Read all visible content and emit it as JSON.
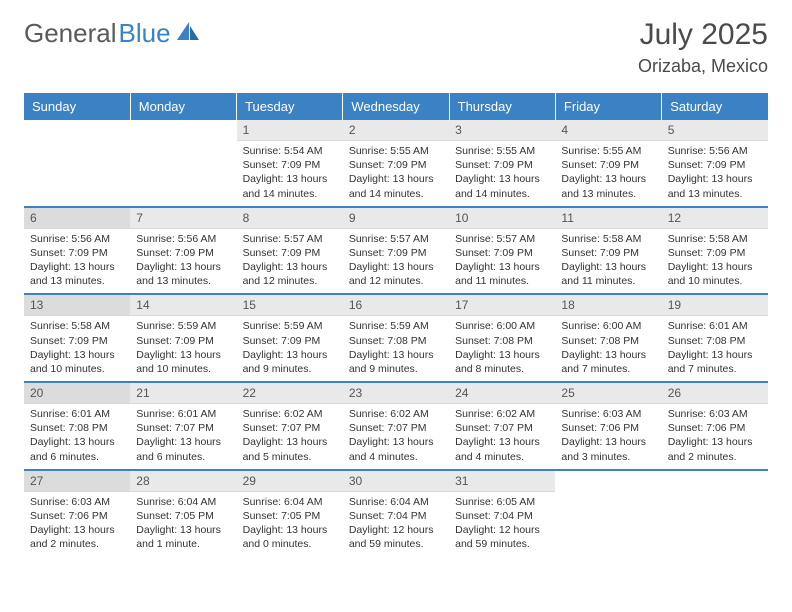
{
  "brand": {
    "part1": "General",
    "part2": "Blue"
  },
  "title": "July 2025",
  "location": "Orizaba, Mexico",
  "colors": {
    "accent": "#3b82c4",
    "header_bg": "#3b82c4",
    "header_text": "#ffffff",
    "daynum_bg": "#e9e9e9",
    "daynum_bg_sunday": "#dcdcdc",
    "text": "#333333",
    "page_bg": "#ffffff"
  },
  "weekdays": [
    "Sunday",
    "Monday",
    "Tuesday",
    "Wednesday",
    "Thursday",
    "Friday",
    "Saturday"
  ],
  "weeks": [
    [
      null,
      null,
      {
        "n": "1",
        "sunrise": "5:54 AM",
        "sunset": "7:09 PM",
        "daylight": "13 hours and 14 minutes."
      },
      {
        "n": "2",
        "sunrise": "5:55 AM",
        "sunset": "7:09 PM",
        "daylight": "13 hours and 14 minutes."
      },
      {
        "n": "3",
        "sunrise": "5:55 AM",
        "sunset": "7:09 PM",
        "daylight": "13 hours and 14 minutes."
      },
      {
        "n": "4",
        "sunrise": "5:55 AM",
        "sunset": "7:09 PM",
        "daylight": "13 hours and 13 minutes."
      },
      {
        "n": "5",
        "sunrise": "5:56 AM",
        "sunset": "7:09 PM",
        "daylight": "13 hours and 13 minutes."
      }
    ],
    [
      {
        "n": "6",
        "sunrise": "5:56 AM",
        "sunset": "7:09 PM",
        "daylight": "13 hours and 13 minutes."
      },
      {
        "n": "7",
        "sunrise": "5:56 AM",
        "sunset": "7:09 PM",
        "daylight": "13 hours and 13 minutes."
      },
      {
        "n": "8",
        "sunrise": "5:57 AM",
        "sunset": "7:09 PM",
        "daylight": "13 hours and 12 minutes."
      },
      {
        "n": "9",
        "sunrise": "5:57 AM",
        "sunset": "7:09 PM",
        "daylight": "13 hours and 12 minutes."
      },
      {
        "n": "10",
        "sunrise": "5:57 AM",
        "sunset": "7:09 PM",
        "daylight": "13 hours and 11 minutes."
      },
      {
        "n": "11",
        "sunrise": "5:58 AM",
        "sunset": "7:09 PM",
        "daylight": "13 hours and 11 minutes."
      },
      {
        "n": "12",
        "sunrise": "5:58 AM",
        "sunset": "7:09 PM",
        "daylight": "13 hours and 10 minutes."
      }
    ],
    [
      {
        "n": "13",
        "sunrise": "5:58 AM",
        "sunset": "7:09 PM",
        "daylight": "13 hours and 10 minutes."
      },
      {
        "n": "14",
        "sunrise": "5:59 AM",
        "sunset": "7:09 PM",
        "daylight": "13 hours and 10 minutes."
      },
      {
        "n": "15",
        "sunrise": "5:59 AM",
        "sunset": "7:09 PM",
        "daylight": "13 hours and 9 minutes."
      },
      {
        "n": "16",
        "sunrise": "5:59 AM",
        "sunset": "7:08 PM",
        "daylight": "13 hours and 9 minutes."
      },
      {
        "n": "17",
        "sunrise": "6:00 AM",
        "sunset": "7:08 PM",
        "daylight": "13 hours and 8 minutes."
      },
      {
        "n": "18",
        "sunrise": "6:00 AM",
        "sunset": "7:08 PM",
        "daylight": "13 hours and 7 minutes."
      },
      {
        "n": "19",
        "sunrise": "6:01 AM",
        "sunset": "7:08 PM",
        "daylight": "13 hours and 7 minutes."
      }
    ],
    [
      {
        "n": "20",
        "sunrise": "6:01 AM",
        "sunset": "7:08 PM",
        "daylight": "13 hours and 6 minutes."
      },
      {
        "n": "21",
        "sunrise": "6:01 AM",
        "sunset": "7:07 PM",
        "daylight": "13 hours and 6 minutes."
      },
      {
        "n": "22",
        "sunrise": "6:02 AM",
        "sunset": "7:07 PM",
        "daylight": "13 hours and 5 minutes."
      },
      {
        "n": "23",
        "sunrise": "6:02 AM",
        "sunset": "7:07 PM",
        "daylight": "13 hours and 4 minutes."
      },
      {
        "n": "24",
        "sunrise": "6:02 AM",
        "sunset": "7:07 PM",
        "daylight": "13 hours and 4 minutes."
      },
      {
        "n": "25",
        "sunrise": "6:03 AM",
        "sunset": "7:06 PM",
        "daylight": "13 hours and 3 minutes."
      },
      {
        "n": "26",
        "sunrise": "6:03 AM",
        "sunset": "7:06 PM",
        "daylight": "13 hours and 2 minutes."
      }
    ],
    [
      {
        "n": "27",
        "sunrise": "6:03 AM",
        "sunset": "7:06 PM",
        "daylight": "13 hours and 2 minutes."
      },
      {
        "n": "28",
        "sunrise": "6:04 AM",
        "sunset": "7:05 PM",
        "daylight": "13 hours and 1 minute."
      },
      {
        "n": "29",
        "sunrise": "6:04 AM",
        "sunset": "7:05 PM",
        "daylight": "13 hours and 0 minutes."
      },
      {
        "n": "30",
        "sunrise": "6:04 AM",
        "sunset": "7:04 PM",
        "daylight": "12 hours and 59 minutes."
      },
      {
        "n": "31",
        "sunrise": "6:05 AM",
        "sunset": "7:04 PM",
        "daylight": "12 hours and 59 minutes."
      },
      null,
      null
    ]
  ],
  "labels": {
    "sunrise": "Sunrise:",
    "sunset": "Sunset:",
    "daylight": "Daylight:"
  }
}
